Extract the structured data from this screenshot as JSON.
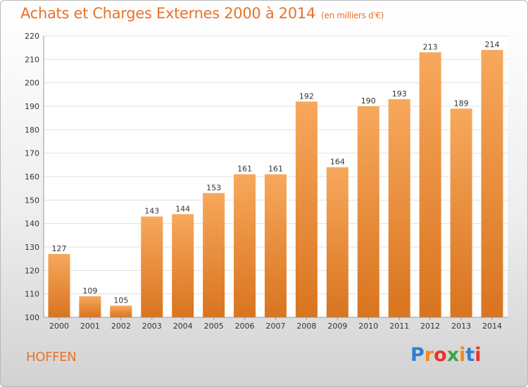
{
  "header": {
    "title": "Achats et Charges Externes 2000 à 2014",
    "subtitle": "(en milliers d'€)"
  },
  "footer": {
    "commune": "HOFFEN",
    "logo": "Proxiti"
  },
  "colors": {
    "accent": "#e8722c",
    "bar_top": "#f7a85c",
    "bar_bottom": "#d9741f",
    "grid": "#e0e0e0"
  },
  "chart_data": {
    "type": "bar",
    "categories": [
      "2000",
      "2001",
      "2002",
      "2003",
      "2004",
      "2005",
      "2006",
      "2007",
      "2008",
      "2009",
      "2010",
      "2011",
      "2012",
      "2013",
      "2014"
    ],
    "values": [
      127,
      109,
      105,
      143,
      144,
      153,
      161,
      161,
      192,
      164,
      190,
      193,
      213,
      189,
      214
    ],
    "title": "Achats et Charges Externes 2000 à 2014",
    "subtitle": "(en milliers d'€)",
    "xlabel": "",
    "ylabel": "",
    "ylim": [
      100,
      220
    ],
    "yticks": [
      100,
      110,
      120,
      130,
      140,
      150,
      160,
      170,
      180,
      190,
      200,
      210,
      220
    ],
    "grid": true,
    "data_labels": true
  }
}
